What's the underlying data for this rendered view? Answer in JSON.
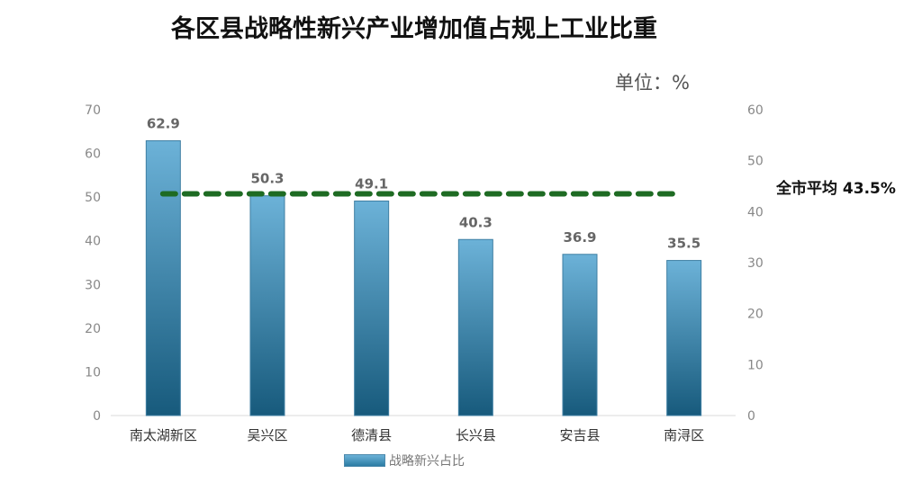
{
  "chart_data": {
    "type": "bar",
    "title": "各区县战略性新兴产业增加值占规上工业比重",
    "unit_label": "单位：%",
    "categories": [
      "南太湖新区",
      "吴兴区",
      "德清县",
      "长兴县",
      "安吉县",
      "南浔区"
    ],
    "series": [
      {
        "name": "战略新兴占比",
        "values": [
          62.9,
          50.3,
          49.1,
          40.3,
          36.9,
          35.5
        ],
        "axis": "left",
        "color": "#4a9cc6"
      }
    ],
    "reference_line": {
      "label": "全市平均 43.5%",
      "value": 43.5,
      "axis": "right",
      "style": "dashed",
      "color": "#1e6b23"
    },
    "ylim": [
      0,
      70
    ],
    "yticks": [
      0,
      10,
      20,
      30,
      40,
      50,
      60,
      70
    ],
    "y2lim": [
      0,
      60
    ],
    "y2ticks": [
      0,
      10,
      20,
      30,
      40,
      50,
      60
    ],
    "legend": "bottom",
    "grid": false
  }
}
